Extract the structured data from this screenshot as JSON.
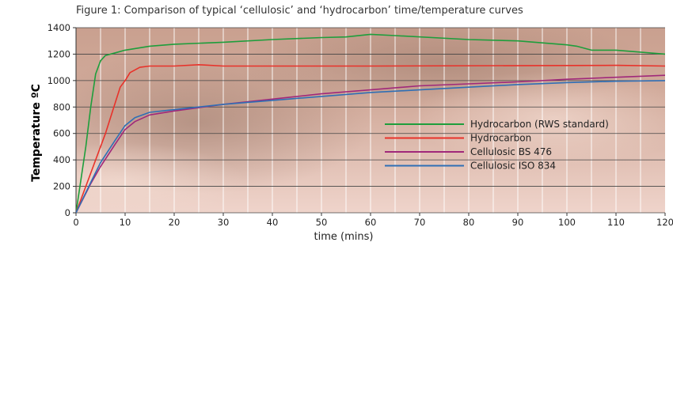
{
  "chart_data": {
    "type": "line",
    "title": "Figure 1:  Comparison of typical ‘cellulosic’ and ‘hydrocarbon’ time/temperature curves",
    "xlabel": "time (mins)",
    "ylabel": "Temperature ºC",
    "xlim": [
      0,
      120
    ],
    "ylim": [
      0,
      1400
    ],
    "xticks": [
      0,
      10,
      20,
      30,
      40,
      50,
      60,
      70,
      80,
      90,
      100,
      110,
      120
    ],
    "yticks": [
      0,
      200,
      400,
      600,
      800,
      1000,
      1200,
      1400
    ],
    "grid": true,
    "legend_position": "right",
    "series": [
      {
        "name": "Hydrocarbon (RWS standard)",
        "color": "#1e9e3c",
        "points": [
          [
            0,
            0
          ],
          [
            2,
            500
          ],
          [
            3,
            800
          ],
          [
            4,
            1050
          ],
          [
            5,
            1150
          ],
          [
            6,
            1190
          ],
          [
            8,
            1210
          ],
          [
            10,
            1230
          ],
          [
            15,
            1260
          ],
          [
            20,
            1275
          ],
          [
            30,
            1290
          ],
          [
            40,
            1310
          ],
          [
            50,
            1325
          ],
          [
            55,
            1330
          ],
          [
            60,
            1350
          ],
          [
            65,
            1340
          ],
          [
            80,
            1310
          ],
          [
            90,
            1300
          ],
          [
            100,
            1270
          ],
          [
            102,
            1260
          ],
          [
            105,
            1230
          ],
          [
            110,
            1230
          ],
          [
            115,
            1215
          ],
          [
            120,
            1200
          ]
        ]
      },
      {
        "name": "Hydrocarbon",
        "color": "#e8322a",
        "points": [
          [
            0,
            0
          ],
          [
            3,
            300
          ],
          [
            6,
            600
          ],
          [
            9,
            950
          ],
          [
            10,
            1000
          ],
          [
            11,
            1060
          ],
          [
            13,
            1100
          ],
          [
            15,
            1110
          ],
          [
            20,
            1110
          ],
          [
            25,
            1120
          ],
          [
            30,
            1110
          ],
          [
            60,
            1110
          ],
          [
            110,
            1115
          ],
          [
            120,
            1110
          ]
        ]
      },
      {
        "name": "Cellulosic BS 476",
        "color": "#a0287a",
        "points": [
          [
            0,
            0
          ],
          [
            3,
            220
          ],
          [
            5,
            350
          ],
          [
            8,
            520
          ],
          [
            10,
            630
          ],
          [
            12,
            690
          ],
          [
            15,
            740
          ],
          [
            20,
            770
          ],
          [
            30,
            820
          ],
          [
            40,
            860
          ],
          [
            50,
            900
          ],
          [
            60,
            930
          ],
          [
            70,
            960
          ],
          [
            80,
            975
          ],
          [
            90,
            990
          ],
          [
            100,
            1010
          ],
          [
            110,
            1025
          ],
          [
            120,
            1040
          ]
        ]
      },
      {
        "name": "Cellulosic ISO 834",
        "color": "#2f6fb5",
        "points": [
          [
            0,
            0
          ],
          [
            3,
            230
          ],
          [
            5,
            380
          ],
          [
            8,
            550
          ],
          [
            10,
            660
          ],
          [
            12,
            720
          ],
          [
            15,
            760
          ],
          [
            20,
            780
          ],
          [
            30,
            820
          ],
          [
            40,
            850
          ],
          [
            50,
            880
          ],
          [
            60,
            910
          ],
          [
            70,
            930
          ],
          [
            80,
            950
          ],
          [
            90,
            970
          ],
          [
            100,
            985
          ],
          [
            110,
            995
          ],
          [
            120,
            1000
          ]
        ]
      }
    ]
  }
}
